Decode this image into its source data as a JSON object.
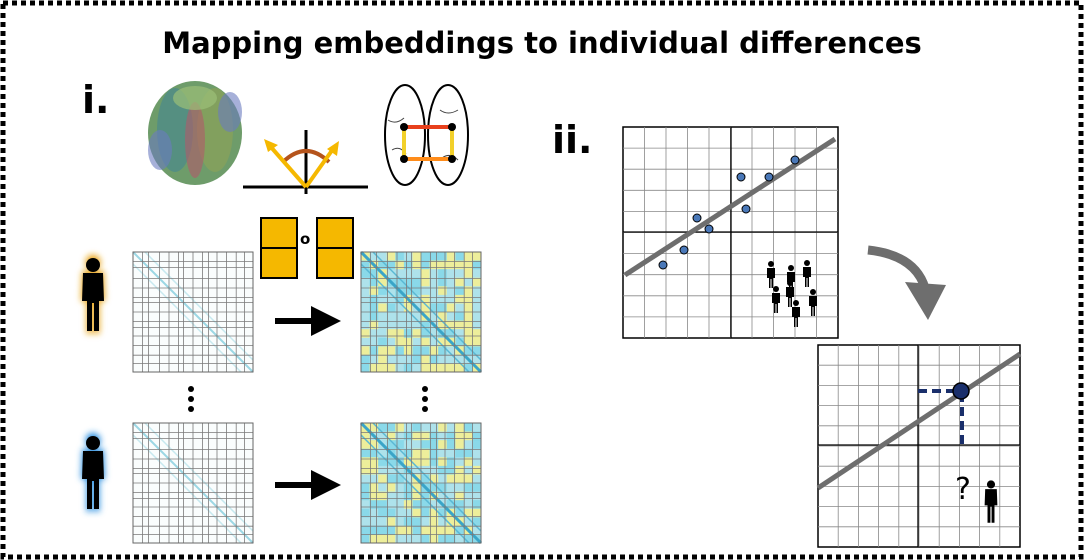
{
  "title": "Mapping embeddings to individual differences",
  "panels": {
    "first": {
      "label": "i."
    },
    "second": {
      "label": "ii."
    }
  },
  "operator_symbol": "o",
  "query_symbol": "?",
  "colors": {
    "frame_dash": "#000000",
    "person_glow_top": "#e8a317",
    "person_glow_bottom": "#2b8fe0",
    "block": "#f5b800",
    "arrow_vector": "#f5b800",
    "angle_arc": "#b5541c",
    "network_edge_red": "#e8401c",
    "network_edge_orange": "#ff8c1a",
    "network_edge_yellow": "#f2d02a",
    "regression_line": "#6e6e6e",
    "scatter_point": "#4a78b8",
    "highlight_point": "#1a2f6b",
    "dashed_guide": "#1a2f6b",
    "curved_arrow": "#6e6e6e",
    "matrix_cyan": "#7fd6e8",
    "matrix_yellow": "#f3ee8c"
  },
  "icons": {
    "tractography": "brain-tractography-icon",
    "network": "brain-network-icon",
    "angle": "angle-vector-icon",
    "person": "person-icon"
  }
}
